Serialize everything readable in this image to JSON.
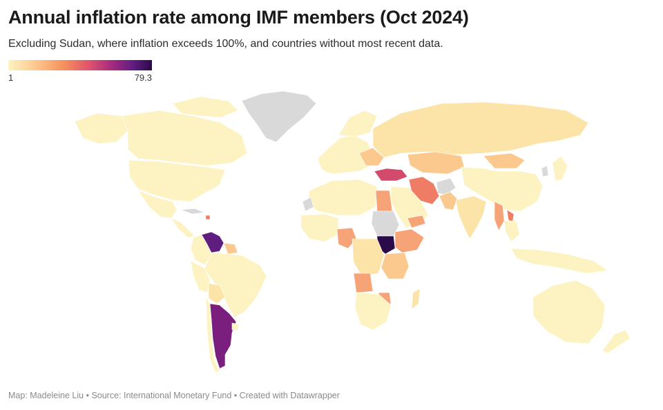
{
  "header": {
    "title": "Annual inflation rate among IMF members (Oct 2024)",
    "subtitle": "Excluding Sudan, where inflation exceeds 100%, and countries without most recent data."
  },
  "legend": {
    "min_label": "1",
    "max_label": "79.3",
    "min_value": 1,
    "max_value": 79.3,
    "gradient_colors": [
      "#fdf3c2",
      "#fdc58a",
      "#f6925d",
      "#e1576b",
      "#a62a80",
      "#5f1d80",
      "#2b0a4a"
    ]
  },
  "footer": {
    "map_credit": "Map: Madeleine Liu",
    "separator_1": " • ",
    "source": "Source: International Monetary Fund",
    "separator_2": " • ",
    "created_with": "Created with Datawrapper"
  },
  "colors": {
    "no_data": "#d9d9d9",
    "very_low": "#fdf3c2",
    "low": "#fce3a8",
    "moderate": "#fbc98e",
    "elevated": "#f6a377",
    "high": "#ef7d66",
    "very_high": "#d24a6c",
    "severe": "#7a1f7d",
    "extreme": "#2b0a4a"
  }
}
